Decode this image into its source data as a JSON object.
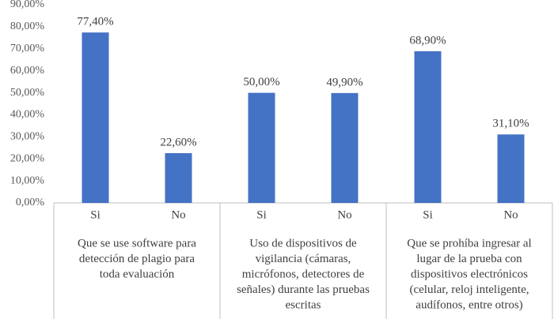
{
  "chart_data": {
    "type": "bar",
    "color": "#4472c4",
    "ylim": [
      0,
      90
    ],
    "yticks": [
      {
        "value": 0,
        "label": "0,00%"
      },
      {
        "value": 10,
        "label": "10,00%"
      },
      {
        "value": 20,
        "label": "20,00%"
      },
      {
        "value": 30,
        "label": "30,00%"
      },
      {
        "value": 40,
        "label": "40,00%"
      },
      {
        "value": 50,
        "label": "50,00%"
      },
      {
        "value": 60,
        "label": "60,00%"
      },
      {
        "value": 70,
        "label": "70,00%"
      },
      {
        "value": 80,
        "label": "80,00%"
      },
      {
        "value": 90,
        "label": "90,00%"
      }
    ],
    "groups": [
      {
        "label": [
          "Que se use software para",
          "detección de plagio  para",
          "toda evaluación"
        ],
        "categories": [
          "Si",
          "No"
        ],
        "values": [
          77.4,
          22.6
        ],
        "value_labels": [
          "77,40%",
          "22,60%"
        ]
      },
      {
        "label": [
          "Uso de dispositivos de",
          "vigilancia (cámaras,",
          "micrófonos, detectores de",
          "señales) durante las pruebas",
          "escritas"
        ],
        "categories": [
          "Si",
          "No"
        ],
        "values": [
          50.0,
          49.9
        ],
        "value_labels": [
          "50,00%",
          "49,90%"
        ]
      },
      {
        "label": [
          "Que se prohíba ingresar al",
          "lugar de la prueba con",
          "dispositivos electrónicos",
          "(celular, reloj inteligente,",
          "audífonos, entre otros)"
        ],
        "categories": [
          "Si",
          "No"
        ],
        "values": [
          68.9,
          31.1
        ],
        "value_labels": [
          "68,90%",
          "31,10%"
        ]
      }
    ]
  }
}
